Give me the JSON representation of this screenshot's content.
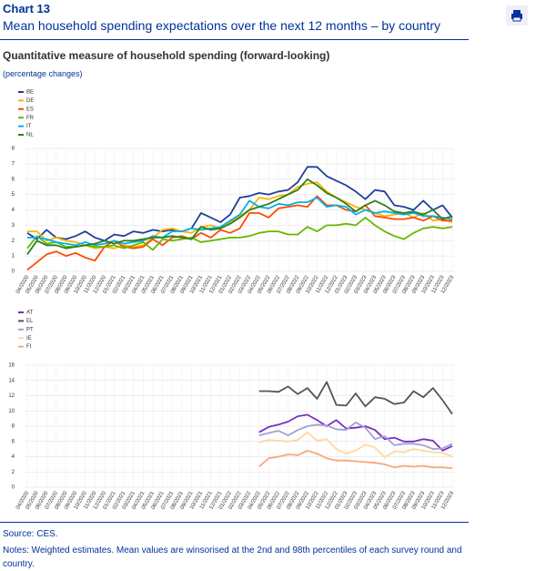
{
  "header": {
    "chart_number": "Chart 13",
    "title": "Mean household spending expectations over the next 12 months – by country"
  },
  "subtitle": "Quantitative measure of household spending (forward-looking)",
  "unit_note": "(percentage changes)",
  "chart_data": [
    {
      "type": "line",
      "categories": [
        "04/2020",
        "05/2020",
        "06/2020",
        "07/2020",
        "08/2020",
        "09/2020",
        "10/2020",
        "11/2020",
        "12/2020",
        "01/2021",
        "02/2021",
        "03/2021",
        "04/2021",
        "05/2021",
        "06/2021",
        "07/2021",
        "08/2021",
        "09/2021",
        "10/2021",
        "11/2021",
        "12/2021",
        "01/2022",
        "02/2022",
        "03/2022",
        "04/2022",
        "05/2022",
        "06/2022",
        "07/2022",
        "08/2022",
        "09/2022",
        "10/2022",
        "11/2022",
        "12/2022",
        "01/2023",
        "02/2023",
        "03/2023",
        "04/2023",
        "05/2023",
        "06/2023",
        "07/2023",
        "08/2023",
        "09/2023",
        "10/2023",
        "11/2023",
        "12/2023"
      ],
      "ylim": [
        0,
        8
      ],
      "yticks": [
        0,
        1,
        2,
        3,
        4,
        5,
        6,
        7,
        8
      ],
      "grid": true,
      "series": [
        {
          "name": "BE",
          "color": "#1f3f99",
          "values": [
            2.5,
            2.1,
            2.7,
            2.2,
            2.1,
            2.3,
            2.6,
            2.2,
            2.0,
            2.4,
            2.3,
            2.6,
            2.5,
            2.7,
            2.6,
            2.7,
            2.6,
            2.8,
            3.8,
            3.5,
            3.2,
            3.7,
            4.8,
            4.9,
            5.1,
            5.0,
            5.2,
            5.3,
            5.8,
            6.8,
            6.8,
            6.2,
            5.9,
            5.6,
            5.2,
            4.7,
            5.3,
            5.2,
            4.3,
            4.2,
            4.0,
            4.6,
            4.0,
            4.3,
            3.5
          ]
        },
        {
          "name": "DE",
          "color": "#ffb400",
          "values": [
            2.6,
            2.6,
            2.0,
            2.2,
            2.0,
            1.9,
            1.7,
            1.5,
            1.6,
            1.5,
            1.7,
            1.6,
            1.7,
            2.2,
            2.7,
            2.8,
            2.6,
            2.5,
            2.9,
            3.0,
            2.8,
            3.2,
            3.6,
            4.0,
            4.8,
            4.7,
            4.9,
            5.0,
            5.5,
            5.7,
            5.8,
            5.2,
            4.8,
            4.5,
            4.2,
            4.0,
            3.8,
            3.6,
            3.7,
            3.8,
            3.5,
            3.8,
            3.3,
            3.4,
            3.2
          ]
        },
        {
          "name": "ES",
          "color": "#ff4b00",
          "values": [
            0.1,
            0.6,
            1.1,
            1.3,
            1.0,
            1.2,
            0.9,
            0.7,
            1.6,
            2.0,
            1.6,
            1.5,
            1.6,
            2.1,
            1.7,
            2.2,
            2.3,
            2.1,
            2.5,
            2.2,
            2.7,
            2.5,
            2.8,
            3.8,
            3.8,
            3.5,
            4.1,
            4.2,
            4.3,
            4.2,
            4.9,
            4.3,
            4.3,
            4.0,
            3.9,
            4.3,
            3.6,
            3.5,
            3.4,
            3.4,
            3.5,
            3.3,
            3.6,
            3.3,
            3.3
          ]
        },
        {
          "name": "FR",
          "color": "#65b800",
          "values": [
            1.5,
            2.3,
            1.8,
            1.9,
            1.6,
            1.6,
            1.7,
            1.6,
            1.6,
            1.7,
            1.5,
            1.7,
            1.9,
            1.4,
            2.1,
            2.0,
            2.1,
            2.2,
            1.9,
            2.0,
            2.1,
            2.2,
            2.2,
            2.3,
            2.5,
            2.6,
            2.6,
            2.4,
            2.4,
            2.9,
            2.6,
            3.0,
            3.0,
            3.1,
            3.0,
            3.5,
            3.0,
            2.6,
            2.3,
            2.1,
            2.5,
            2.8,
            2.9,
            2.8,
            2.9
          ]
        },
        {
          "name": "IT",
          "color": "#00b1ea",
          "values": [
            2.2,
            2.2,
            2.1,
            1.9,
            1.8,
            1.7,
            1.9,
            1.7,
            1.8,
            2.0,
            1.8,
            1.9,
            2.0,
            2.3,
            2.2,
            2.6,
            2.6,
            2.8,
            2.7,
            2.8,
            2.9,
            3.3,
            3.7,
            4.6,
            4.2,
            4.1,
            4.4,
            4.3,
            4.5,
            4.5,
            4.8,
            4.2,
            4.3,
            4.2,
            3.7,
            4.0,
            3.8,
            3.9,
            3.8,
            3.7,
            3.8,
            3.6,
            3.6,
            3.5,
            3.4
          ]
        },
        {
          "name": "NL",
          "color": "#2f7f1a",
          "values": [
            1.1,
            2.0,
            1.7,
            1.7,
            1.5,
            1.6,
            1.7,
            1.8,
            2.0,
            1.8,
            2.0,
            2.0,
            2.1,
            2.2,
            2.2,
            2.3,
            2.2,
            2.1,
            2.9,
            2.7,
            2.8,
            3.1,
            3.5,
            4.0,
            4.2,
            4.4,
            4.7,
            5.0,
            5.3,
            6.0,
            5.6,
            5.1,
            4.8,
            4.4,
            3.9,
            4.3,
            4.6,
            4.3,
            3.9,
            3.8,
            3.9,
            3.7,
            4.0,
            3.4,
            3.6
          ]
        }
      ]
    },
    {
      "type": "line",
      "categories": [
        "04/2020",
        "05/2020",
        "06/2020",
        "07/2020",
        "08/2020",
        "09/2020",
        "10/2020",
        "11/2020",
        "12/2020",
        "01/2021",
        "02/2021",
        "03/2021",
        "04/2021",
        "05/2021",
        "06/2021",
        "07/2021",
        "08/2021",
        "09/2021",
        "10/2021",
        "11/2021",
        "12/2021",
        "01/2022",
        "02/2022",
        "03/2022",
        "04/2022",
        "05/2022",
        "06/2022",
        "07/2022",
        "08/2022",
        "09/2022",
        "10/2022",
        "11/2022",
        "12/2022",
        "01/2023",
        "02/2023",
        "03/2023",
        "04/2023",
        "05/2023",
        "06/2023",
        "07/2023",
        "08/2023",
        "09/2023",
        "10/2023",
        "11/2023",
        "12/2023"
      ],
      "ylim": [
        0,
        16
      ],
      "yticks": [
        0,
        2,
        4,
        6,
        8,
        10,
        12,
        14,
        16
      ],
      "grid": true,
      "series": [
        {
          "name": "AT",
          "color": "#7a2fbf",
          "values": [
            null,
            null,
            null,
            null,
            null,
            null,
            null,
            null,
            null,
            null,
            null,
            null,
            null,
            null,
            null,
            null,
            null,
            null,
            null,
            null,
            null,
            null,
            null,
            null,
            7.2,
            7.9,
            8.2,
            8.6,
            9.3,
            9.5,
            8.8,
            8.0,
            8.8,
            7.7,
            7.8,
            8.0,
            7.5,
            6.3,
            6.5,
            6.0,
            6.0,
            6.3,
            6.1,
            4.8,
            5.4
          ]
        },
        {
          "name": "EL",
          "color": "#555555",
          "values": [
            null,
            null,
            null,
            null,
            null,
            null,
            null,
            null,
            null,
            null,
            null,
            null,
            null,
            null,
            null,
            null,
            null,
            null,
            null,
            null,
            null,
            null,
            null,
            null,
            12.6,
            12.6,
            12.5,
            13.2,
            12.2,
            13.0,
            11.6,
            13.8,
            10.8,
            10.7,
            12.3,
            10.6,
            11.8,
            11.6,
            10.9,
            11.1,
            12.6,
            11.8,
            13.0,
            11.4,
            9.6
          ]
        },
        {
          "name": "PT",
          "color": "#a0a0d8",
          "values": [
            null,
            null,
            null,
            null,
            null,
            null,
            null,
            null,
            null,
            null,
            null,
            null,
            null,
            null,
            null,
            null,
            null,
            null,
            null,
            null,
            null,
            null,
            null,
            null,
            6.8,
            7.1,
            7.4,
            6.8,
            7.5,
            8.0,
            8.2,
            8.1,
            7.6,
            7.5,
            8.5,
            7.8,
            6.3,
            6.7,
            5.5,
            5.7,
            5.7,
            5.5,
            5.0,
            5.1,
            5.7
          ]
        },
        {
          "name": "IE",
          "color": "#ffd8a0",
          "values": [
            null,
            null,
            null,
            null,
            null,
            null,
            null,
            null,
            null,
            null,
            null,
            null,
            null,
            null,
            null,
            null,
            null,
            null,
            null,
            null,
            null,
            null,
            null,
            null,
            5.9,
            6.2,
            6.1,
            6.0,
            6.2,
            7.2,
            6.1,
            6.3,
            5.0,
            4.4,
            4.8,
            5.6,
            5.2,
            3.9,
            4.7,
            4.6,
            5.0,
            4.8,
            4.6,
            4.5,
            4.0
          ]
        },
        {
          "name": "FI",
          "color": "#f7a77a",
          "values": [
            null,
            null,
            null,
            null,
            null,
            null,
            null,
            null,
            null,
            null,
            null,
            null,
            null,
            null,
            null,
            null,
            null,
            null,
            null,
            null,
            null,
            null,
            null,
            null,
            2.7,
            3.8,
            4.0,
            4.3,
            4.2,
            4.8,
            4.4,
            3.8,
            3.5,
            3.5,
            3.4,
            3.3,
            3.2,
            3.0,
            2.6,
            2.8,
            2.7,
            2.8,
            2.6,
            2.6,
            2.5
          ]
        }
      ]
    }
  ],
  "footer": {
    "source": "Source: CES.",
    "notes": "Notes: Weighted estimates. Mean values are winsorised at the 2nd and 98th percentiles of each survey round and country."
  }
}
